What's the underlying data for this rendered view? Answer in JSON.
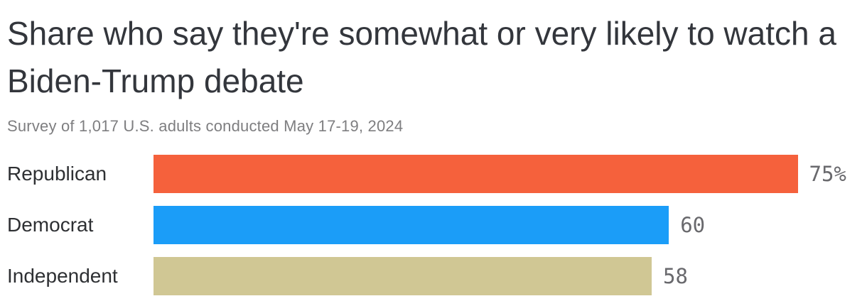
{
  "header": {
    "title": "Share who say they're somewhat or very likely to watch a Biden-Trump debate",
    "subtitle": "Survey of 1,017 U.S. adults conducted May 17-19, 2024"
  },
  "chart_data": {
    "type": "bar",
    "orientation": "horizontal",
    "title": "Share who say they're somewhat or very likely to watch a Biden-Trump debate",
    "subtitle": "Survey of 1,017 U.S. adults conducted May 17-19, 2024",
    "categories": [
      "Republican",
      "Democrat",
      "Independent"
    ],
    "values": [
      75,
      60,
      58
    ],
    "value_labels": [
      "75%",
      "60",
      "58"
    ],
    "unit": "%",
    "bar_colors": [
      "#F5613C",
      "#1B9DF8",
      "#D0C794"
    ],
    "xlim": [
      0,
      75
    ],
    "grid": false,
    "legend": false,
    "axis_ticks": "none",
    "value_label_position": "right-of-bar"
  },
  "colors": {
    "title_text": "#33363c",
    "subtitle_text": "#7e7e80",
    "category_text": "#2e3033",
    "value_text": "#69696d",
    "background": "#ffffff"
  }
}
